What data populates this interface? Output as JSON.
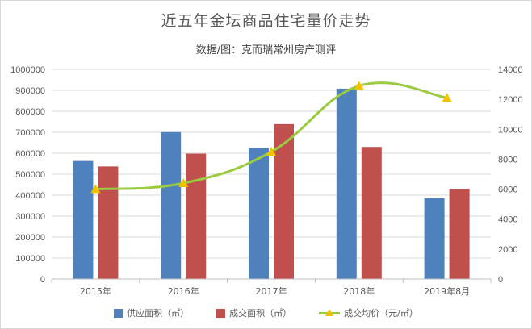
{
  "chart_data": {
    "type": "bar",
    "title": "近五年金坛商品住宅量价走势",
    "subtitle": "数据/图：克而瑞常州房产测评",
    "categories": [
      "2015年",
      "2016年",
      "2017年",
      "2018年",
      "2019年8月"
    ],
    "series": [
      {
        "name": "供应面积（㎡）",
        "type": "bar",
        "axis": "left",
        "color": "#4f81bd",
        "values": [
          563000,
          701000,
          624000,
          908000,
          386000
        ]
      },
      {
        "name": "成交面积（㎡）",
        "type": "bar",
        "axis": "left",
        "color": "#c0504d",
        "values": [
          537000,
          598000,
          739000,
          630000,
          429000
        ]
      },
      {
        "name": "成交均价（元/㎡）",
        "type": "line",
        "smooth": true,
        "axis": "right",
        "color": "#9bcc3f",
        "marker_color": "#f2c200",
        "values": [
          6000,
          6400,
          8500,
          12900,
          12100
        ]
      }
    ],
    "y_left": {
      "min": 0,
      "max": 1000000,
      "step": 100000,
      "ticks": [
        "0",
        "100000",
        "200000",
        "300000",
        "400000",
        "500000",
        "600000",
        "700000",
        "800000",
        "900000",
        "1000000"
      ]
    },
    "y_right": {
      "min": 0,
      "max": 14000,
      "step": 2000,
      "ticks": [
        "0",
        "2000",
        "4000",
        "6000",
        "8000",
        "10000",
        "12000",
        "14000"
      ]
    },
    "grid": true,
    "legend_position": "bottom"
  }
}
